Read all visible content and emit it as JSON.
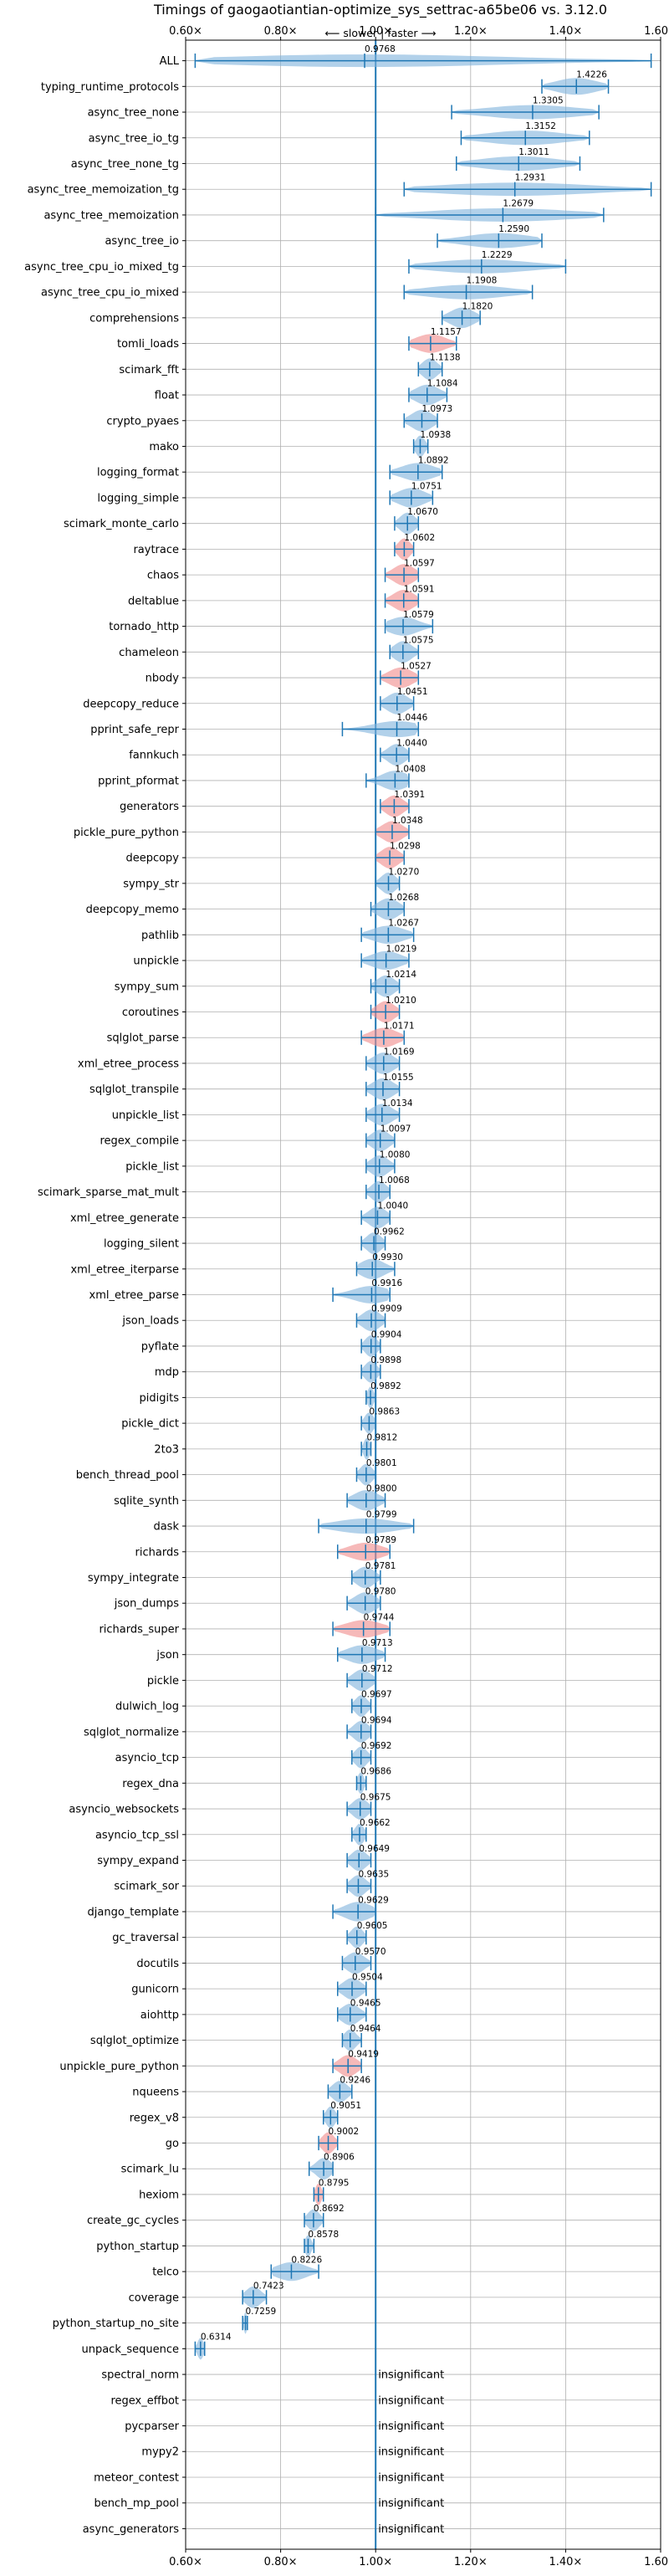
{
  "chart_data": {
    "type": "violin",
    "title": "Timings of gaogaotiantian-optimize_sys_settrac-a65be06 vs. 3.12.0",
    "subtitle": "⟵ slower | faster ⟶",
    "xlim": [
      0.6,
      1.6
    ],
    "xticks": [
      "0.60×",
      "0.80×",
      "1.00×",
      "1.20×",
      "1.40×",
      "1.60×"
    ],
    "xtick_values": [
      0.6,
      0.8,
      1.0,
      1.2,
      1.4,
      1.6
    ],
    "reference_line": 1.0,
    "grid": true,
    "colors": {
      "violin": "#7fb2dc",
      "highlight": "#f08a8a",
      "line": "#1f77b4"
    },
    "insignificant_text": "insignificant",
    "benchmarks": [
      {
        "name": "ALL",
        "value": 0.9768,
        "min": 0.62,
        "max": 1.58,
        "highlight": false
      },
      {
        "name": "typing_runtime_protocols",
        "value": 1.4226,
        "min": 1.35,
        "max": 1.49,
        "highlight": false
      },
      {
        "name": "async_tree_none",
        "value": 1.3305,
        "min": 1.16,
        "max": 1.47,
        "highlight": false
      },
      {
        "name": "async_tree_io_tg",
        "value": 1.3152,
        "min": 1.18,
        "max": 1.45,
        "highlight": false
      },
      {
        "name": "async_tree_none_tg",
        "value": 1.3011,
        "min": 1.17,
        "max": 1.43,
        "highlight": false
      },
      {
        "name": "async_tree_memoization_tg",
        "value": 1.2931,
        "min": 1.06,
        "max": 1.58,
        "highlight": false
      },
      {
        "name": "async_tree_memoization",
        "value": 1.2679,
        "min": 1.0,
        "max": 1.48,
        "highlight": false
      },
      {
        "name": "async_tree_io",
        "value": 1.259,
        "min": 1.13,
        "max": 1.35,
        "highlight": false
      },
      {
        "name": "async_tree_cpu_io_mixed_tg",
        "value": 1.2229,
        "min": 1.07,
        "max": 1.4,
        "highlight": false
      },
      {
        "name": "async_tree_cpu_io_mixed",
        "value": 1.1908,
        "min": 1.06,
        "max": 1.33,
        "highlight": false
      },
      {
        "name": "comprehensions",
        "value": 1.182,
        "min": 1.14,
        "max": 1.22,
        "highlight": false
      },
      {
        "name": "tomli_loads",
        "value": 1.1157,
        "min": 1.07,
        "max": 1.17,
        "highlight": true
      },
      {
        "name": "scimark_fft",
        "value": 1.1138,
        "min": 1.09,
        "max": 1.14,
        "highlight": false
      },
      {
        "name": "float",
        "value": 1.1084,
        "min": 1.07,
        "max": 1.15,
        "highlight": false
      },
      {
        "name": "crypto_pyaes",
        "value": 1.0973,
        "min": 1.06,
        "max": 1.13,
        "highlight": false
      },
      {
        "name": "mako",
        "value": 1.0938,
        "min": 1.08,
        "max": 1.11,
        "highlight": false
      },
      {
        "name": "logging_format",
        "value": 1.0892,
        "min": 1.03,
        "max": 1.14,
        "highlight": false
      },
      {
        "name": "logging_simple",
        "value": 1.0751,
        "min": 1.03,
        "max": 1.12,
        "highlight": false
      },
      {
        "name": "scimark_monte_carlo",
        "value": 1.067,
        "min": 1.04,
        "max": 1.09,
        "highlight": false
      },
      {
        "name": "raytrace",
        "value": 1.0602,
        "min": 1.04,
        "max": 1.08,
        "highlight": true
      },
      {
        "name": "chaos",
        "value": 1.0597,
        "min": 1.02,
        "max": 1.09,
        "highlight": true
      },
      {
        "name": "deltablue",
        "value": 1.0591,
        "min": 1.02,
        "max": 1.09,
        "highlight": true
      },
      {
        "name": "tornado_http",
        "value": 1.0579,
        "min": 1.02,
        "max": 1.12,
        "highlight": false
      },
      {
        "name": "chameleon",
        "value": 1.0575,
        "min": 1.03,
        "max": 1.09,
        "highlight": false
      },
      {
        "name": "nbody",
        "value": 1.0527,
        "min": 1.01,
        "max": 1.09,
        "highlight": true
      },
      {
        "name": "deepcopy_reduce",
        "value": 1.0451,
        "min": 1.01,
        "max": 1.08,
        "highlight": false
      },
      {
        "name": "pprint_safe_repr",
        "value": 1.0446,
        "min": 0.93,
        "max": 1.09,
        "highlight": false
      },
      {
        "name": "fannkuch",
        "value": 1.044,
        "min": 1.01,
        "max": 1.07,
        "highlight": false
      },
      {
        "name": "pprint_pformat",
        "value": 1.0408,
        "min": 0.98,
        "max": 1.07,
        "highlight": false
      },
      {
        "name": "generators",
        "value": 1.0391,
        "min": 1.01,
        "max": 1.07,
        "highlight": true
      },
      {
        "name": "pickle_pure_python",
        "value": 1.0348,
        "min": 1.0,
        "max": 1.07,
        "highlight": true
      },
      {
        "name": "deepcopy",
        "value": 1.0298,
        "min": 1.0,
        "max": 1.06,
        "highlight": true
      },
      {
        "name": "sympy_str",
        "value": 1.027,
        "min": 1.0,
        "max": 1.05,
        "highlight": false
      },
      {
        "name": "deepcopy_memo",
        "value": 1.0268,
        "min": 0.99,
        "max": 1.06,
        "highlight": false
      },
      {
        "name": "pathlib",
        "value": 1.0267,
        "min": 0.97,
        "max": 1.08,
        "highlight": false
      },
      {
        "name": "unpickle",
        "value": 1.0219,
        "min": 0.97,
        "max": 1.07,
        "highlight": false
      },
      {
        "name": "sympy_sum",
        "value": 1.0214,
        "min": 0.99,
        "max": 1.05,
        "highlight": false
      },
      {
        "name": "coroutines",
        "value": 1.021,
        "min": 0.99,
        "max": 1.05,
        "highlight": true
      },
      {
        "name": "sqlglot_parse",
        "value": 1.0171,
        "min": 0.97,
        "max": 1.06,
        "highlight": true
      },
      {
        "name": "xml_etree_process",
        "value": 1.0169,
        "min": 0.98,
        "max": 1.05,
        "highlight": false
      },
      {
        "name": "sqlglot_transpile",
        "value": 1.0155,
        "min": 0.98,
        "max": 1.05,
        "highlight": false
      },
      {
        "name": "unpickle_list",
        "value": 1.0134,
        "min": 0.98,
        "max": 1.05,
        "highlight": false
      },
      {
        "name": "regex_compile",
        "value": 1.0097,
        "min": 0.98,
        "max": 1.04,
        "highlight": false
      },
      {
        "name": "pickle_list",
        "value": 1.008,
        "min": 0.98,
        "max": 1.04,
        "highlight": false
      },
      {
        "name": "scimark_sparse_mat_mult",
        "value": 1.0068,
        "min": 0.98,
        "max": 1.03,
        "highlight": false
      },
      {
        "name": "xml_etree_generate",
        "value": 1.004,
        "min": 0.97,
        "max": 1.03,
        "highlight": false
      },
      {
        "name": "logging_silent",
        "value": 0.9962,
        "min": 0.97,
        "max": 1.02,
        "highlight": false
      },
      {
        "name": "xml_etree_iterparse",
        "value": 0.993,
        "min": 0.96,
        "max": 1.04,
        "highlight": false
      },
      {
        "name": "xml_etree_parse",
        "value": 0.9916,
        "min": 0.91,
        "max": 1.03,
        "highlight": false
      },
      {
        "name": "json_loads",
        "value": 0.9909,
        "min": 0.96,
        "max": 1.02,
        "highlight": false
      },
      {
        "name": "pyflate",
        "value": 0.9904,
        "min": 0.97,
        "max": 1.01,
        "highlight": false
      },
      {
        "name": "mdp",
        "value": 0.9898,
        "min": 0.97,
        "max": 1.01,
        "highlight": false
      },
      {
        "name": "pidigits",
        "value": 0.9892,
        "min": 0.98,
        "max": 1.0,
        "highlight": false
      },
      {
        "name": "pickle_dict",
        "value": 0.9863,
        "min": 0.97,
        "max": 1.0,
        "highlight": false
      },
      {
        "name": "2to3",
        "value": 0.9812,
        "min": 0.97,
        "max": 0.99,
        "highlight": false
      },
      {
        "name": "bench_thread_pool",
        "value": 0.9801,
        "min": 0.96,
        "max": 1.0,
        "highlight": false
      },
      {
        "name": "sqlite_synth",
        "value": 0.98,
        "min": 0.94,
        "max": 1.02,
        "highlight": false
      },
      {
        "name": "dask",
        "value": 0.9799,
        "min": 0.88,
        "max": 1.08,
        "highlight": false
      },
      {
        "name": "richards",
        "value": 0.9789,
        "min": 0.92,
        "max": 1.03,
        "highlight": true
      },
      {
        "name": "sympy_integrate",
        "value": 0.9781,
        "min": 0.95,
        "max": 1.01,
        "highlight": false
      },
      {
        "name": "json_dumps",
        "value": 0.978,
        "min": 0.94,
        "max": 1.01,
        "highlight": false
      },
      {
        "name": "richards_super",
        "value": 0.9744,
        "min": 0.91,
        "max": 1.03,
        "highlight": true
      },
      {
        "name": "json",
        "value": 0.9713,
        "min": 0.92,
        "max": 1.02,
        "highlight": false
      },
      {
        "name": "pickle",
        "value": 0.9712,
        "min": 0.94,
        "max": 1.0,
        "highlight": false
      },
      {
        "name": "dulwich_log",
        "value": 0.9697,
        "min": 0.95,
        "max": 0.99,
        "highlight": false
      },
      {
        "name": "sqlglot_normalize",
        "value": 0.9694,
        "min": 0.94,
        "max": 0.99,
        "highlight": false
      },
      {
        "name": "asyncio_tcp",
        "value": 0.9692,
        "min": 0.95,
        "max": 0.99,
        "highlight": false
      },
      {
        "name": "regex_dna",
        "value": 0.9686,
        "min": 0.96,
        "max": 0.98,
        "highlight": false
      },
      {
        "name": "asyncio_websockets",
        "value": 0.9675,
        "min": 0.94,
        "max": 0.99,
        "highlight": false
      },
      {
        "name": "asyncio_tcp_ssl",
        "value": 0.9662,
        "min": 0.95,
        "max": 0.98,
        "highlight": false
      },
      {
        "name": "sympy_expand",
        "value": 0.9649,
        "min": 0.94,
        "max": 0.99,
        "highlight": false
      },
      {
        "name": "scimark_sor",
        "value": 0.9635,
        "min": 0.94,
        "max": 0.99,
        "highlight": false
      },
      {
        "name": "django_template",
        "value": 0.9629,
        "min": 0.91,
        "max": 1.0,
        "highlight": false
      },
      {
        "name": "gc_traversal",
        "value": 0.9605,
        "min": 0.94,
        "max": 0.98,
        "highlight": false
      },
      {
        "name": "docutils",
        "value": 0.957,
        "min": 0.93,
        "max": 0.99,
        "highlight": false
      },
      {
        "name": "gunicorn",
        "value": 0.9504,
        "min": 0.92,
        "max": 0.98,
        "highlight": false
      },
      {
        "name": "aiohttp",
        "value": 0.9465,
        "min": 0.92,
        "max": 0.98,
        "highlight": false
      },
      {
        "name": "sqlglot_optimize",
        "value": 0.9464,
        "min": 0.93,
        "max": 0.97,
        "highlight": false
      },
      {
        "name": "unpickle_pure_python",
        "value": 0.9419,
        "min": 0.91,
        "max": 0.97,
        "highlight": true
      },
      {
        "name": "nqueens",
        "value": 0.9246,
        "min": 0.9,
        "max": 0.95,
        "highlight": false
      },
      {
        "name": "regex_v8",
        "value": 0.9051,
        "min": 0.89,
        "max": 0.92,
        "highlight": false
      },
      {
        "name": "go",
        "value": 0.9002,
        "min": 0.88,
        "max": 0.92,
        "highlight": true
      },
      {
        "name": "scimark_lu",
        "value": 0.8906,
        "min": 0.86,
        "max": 0.91,
        "highlight": false
      },
      {
        "name": "hexiom",
        "value": 0.8795,
        "min": 0.87,
        "max": 0.89,
        "highlight": true
      },
      {
        "name": "create_gc_cycles",
        "value": 0.8692,
        "min": 0.85,
        "max": 0.89,
        "highlight": false
      },
      {
        "name": "python_startup",
        "value": 0.8578,
        "min": 0.85,
        "max": 0.87,
        "highlight": false
      },
      {
        "name": "telco",
        "value": 0.8226,
        "min": 0.78,
        "max": 0.88,
        "highlight": false
      },
      {
        "name": "coverage",
        "value": 0.7423,
        "min": 0.72,
        "max": 0.77,
        "highlight": false
      },
      {
        "name": "python_startup_no_site",
        "value": 0.7259,
        "min": 0.72,
        "max": 0.73,
        "highlight": false
      },
      {
        "name": "unpack_sequence",
        "value": 0.6314,
        "min": 0.62,
        "max": 0.64,
        "highlight": false
      },
      {
        "name": "spectral_norm",
        "value": null,
        "insignificant": true
      },
      {
        "name": "regex_effbot",
        "value": null,
        "insignificant": true
      },
      {
        "name": "pycparser",
        "value": null,
        "insignificant": true
      },
      {
        "name": "mypy2",
        "value": null,
        "insignificant": true
      },
      {
        "name": "meteor_contest",
        "value": null,
        "insignificant": true
      },
      {
        "name": "bench_mp_pool",
        "value": null,
        "insignificant": true
      },
      {
        "name": "async_generators",
        "value": null,
        "insignificant": true
      }
    ]
  }
}
